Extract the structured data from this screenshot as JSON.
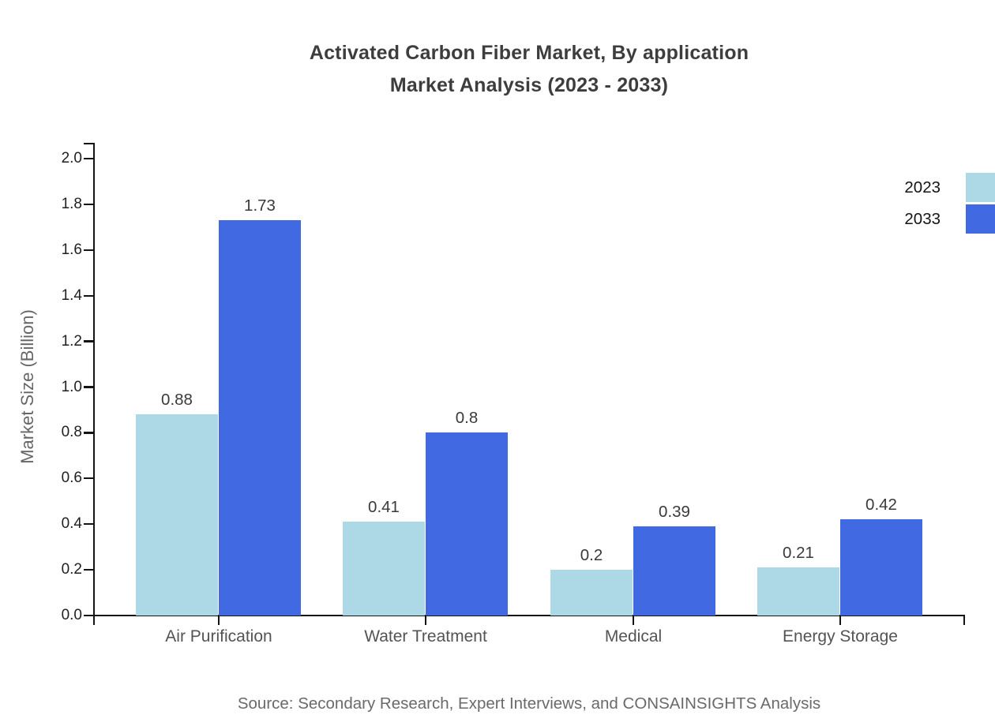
{
  "title": {
    "line1": "Activated Carbon Fiber Market, By application",
    "line2": "Market Analysis (2023 - 2033)"
  },
  "source": "Source: Secondary Research, Expert Interviews, and CONSAINSIGHTS Analysis",
  "legend": [
    {
      "label": "2023",
      "color": "#ADD8E6"
    },
    {
      "label": "2033",
      "color": "#4169E1"
    }
  ],
  "colors": {
    "series_2023": "#ADD8E6",
    "series_2033": "#4169E1",
    "axis": "#141414",
    "title_text": "#3d3d3d",
    "category_text": "#545454",
    "source_text": "#6a6a6a"
  },
  "chart_data": {
    "type": "bar",
    "title": "Activated Carbon Fiber Market, By application Market Analysis (2023 - 2033)",
    "categories": [
      "Air Purification",
      "Water Treatment",
      "Medical",
      "Energy Storage"
    ],
    "series": [
      {
        "name": "2023",
        "color": "#ADD8E6",
        "values": [
          0.88,
          0.41,
          0.2,
          0.21
        ]
      },
      {
        "name": "2033",
        "color": "#4169E1",
        "values": [
          1.73,
          0.8,
          0.39,
          0.42
        ]
      }
    ],
    "xlabel": "",
    "ylabel": "Market Size (Billion)",
    "ylim": [
      0.0,
      2.0
    ],
    "ytick_step": 0.2,
    "grid": false,
    "legend_position": "upper right",
    "bar_value_labels": true
  }
}
